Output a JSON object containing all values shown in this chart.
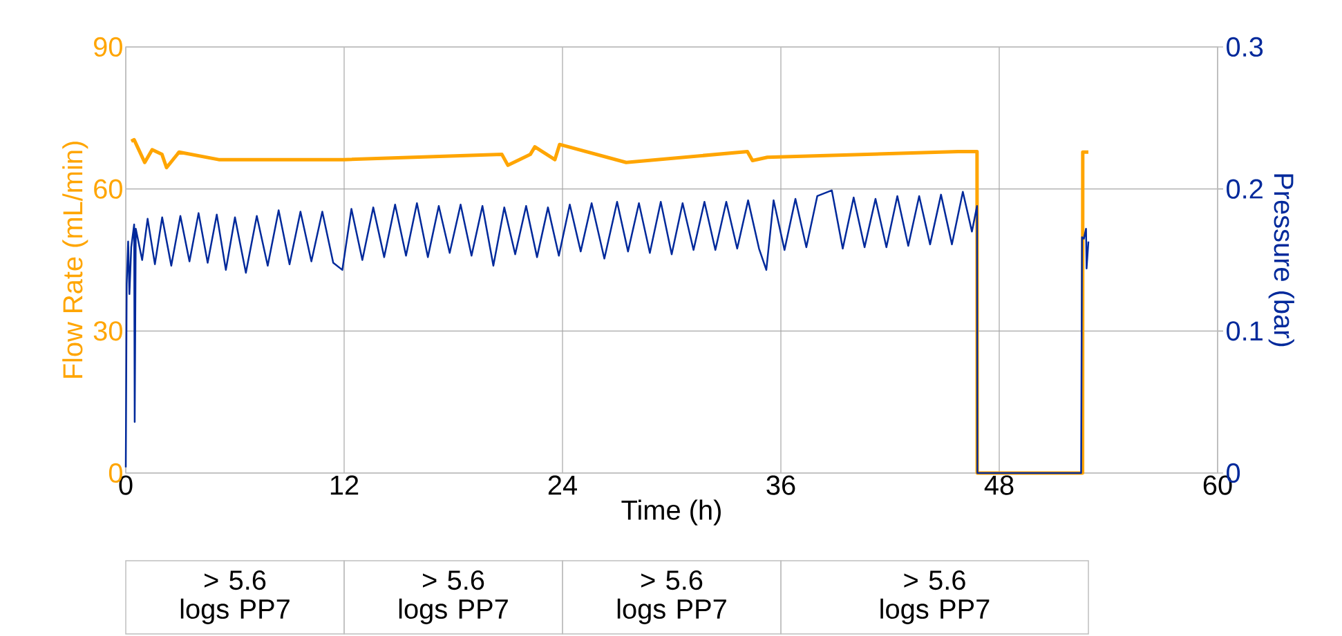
{
  "chart_data": {
    "type": "line",
    "xlabel": "Time (h)",
    "ylabel": "Flow Rate (mL/min)",
    "y2label": "Pressure (bar)",
    "xlim": [
      0,
      60
    ],
    "xticks": [
      0,
      12,
      24,
      36,
      48,
      60
    ],
    "ylim": [
      0,
      90
    ],
    "yticks": [
      0,
      30,
      60,
      90
    ],
    "y2lim": [
      0,
      0.3
    ],
    "y2ticks": [
      0,
      0.1,
      0.2,
      0.3
    ],
    "grid": true,
    "marker": "none",
    "line_style": "solid",
    "series": [
      {
        "color": "#ffa500",
        "x": [
          0.3,
          0.46,
          1.04,
          1.45,
          1.99,
          2.24,
          2.93,
          5.11,
          11.96,
          20.67,
          21.0,
          22.23,
          22.48,
          23.58,
          23.84,
          27.5,
          34.16,
          34.44,
          35.26,
          45.74,
          46.78,
          46.79,
          52.58,
          52.59,
          52.9
        ],
        "values": [
          70.1,
          70.4,
          65.6,
          68.3,
          67.3,
          64.5,
          67.8,
          66.2,
          66.2,
          67.3,
          65.0,
          67.3,
          68.9,
          66.2,
          69.4,
          65.6,
          67.9,
          66.0,
          66.7,
          67.9,
          67.9,
          0,
          0,
          67.8,
          67.8
        ]
      },
      {
        "color": "#00299b",
        "axis": "y2",
        "x": [
          0,
          0.05,
          0.13,
          0.2,
          0.3,
          0.46,
          0.49,
          0.55,
          0.9,
          1.2,
          1.6,
          2.0,
          2.5,
          3.0,
          3.5,
          4.0,
          4.5,
          5.0,
          5.5,
          6.0,
          6.6,
          7.2,
          7.8,
          8.4,
          9.0,
          9.6,
          10.2,
          10.8,
          11.4,
          11.9,
          12.4,
          13.0,
          13.6,
          14.2,
          14.8,
          15.4,
          16.0,
          16.6,
          17.2,
          17.8,
          18.4,
          19.0,
          19.6,
          20.2,
          20.8,
          21.4,
          22.0,
          22.6,
          23.2,
          23.8,
          24.4,
          25.0,
          25.6,
          26.3,
          27.0,
          27.6,
          28.2,
          28.8,
          29.4,
          30.0,
          30.6,
          31.2,
          31.8,
          32.4,
          33.0,
          33.6,
          34.2,
          34.8,
          35.2,
          35.6,
          36.2,
          36.8,
          37.4,
          38.0,
          38.8,
          39.4,
          40.0,
          40.6,
          41.2,
          41.8,
          42.4,
          43.0,
          43.6,
          44.2,
          44.8,
          45.4,
          46.0,
          46.5,
          46.78,
          46.8,
          52.5,
          52.55,
          52.65,
          52.77,
          52.8,
          52.9
        ],
        "values": [
          0.004,
          0.133,
          0.163,
          0.126,
          0.159,
          0.175,
          0.036,
          0.172,
          0.15,
          0.179,
          0.147,
          0.18,
          0.146,
          0.181,
          0.149,
          0.183,
          0.148,
          0.182,
          0.143,
          0.18,
          0.141,
          0.181,
          0.146,
          0.185,
          0.147,
          0.184,
          0.149,
          0.184,
          0.148,
          0.143,
          0.186,
          0.15,
          0.187,
          0.152,
          0.189,
          0.153,
          0.19,
          0.152,
          0.188,
          0.155,
          0.189,
          0.153,
          0.188,
          0.146,
          0.187,
          0.154,
          0.188,
          0.152,
          0.187,
          0.153,
          0.189,
          0.156,
          0.19,
          0.151,
          0.191,
          0.156,
          0.19,
          0.155,
          0.191,
          0.154,
          0.19,
          0.157,
          0.191,
          0.157,
          0.191,
          0.158,
          0.192,
          0.158,
          0.143,
          0.192,
          0.157,
          0.193,
          0.159,
          0.195,
          0.199,
          0.158,
          0.194,
          0.159,
          0.193,
          0.159,
          0.195,
          0.16,
          0.195,
          0.161,
          0.196,
          0.161,
          0.198,
          0.17,
          0.188,
          0,
          0,
          0.166,
          0.165,
          0.172,
          0.144,
          0.163
        ]
      }
    ],
    "annotations": [
      "> 5.6 logs PP7",
      "> 5.6 logs PP7",
      "> 5.6 logs PP7",
      "> 5.6 logs PP7"
    ]
  }
}
